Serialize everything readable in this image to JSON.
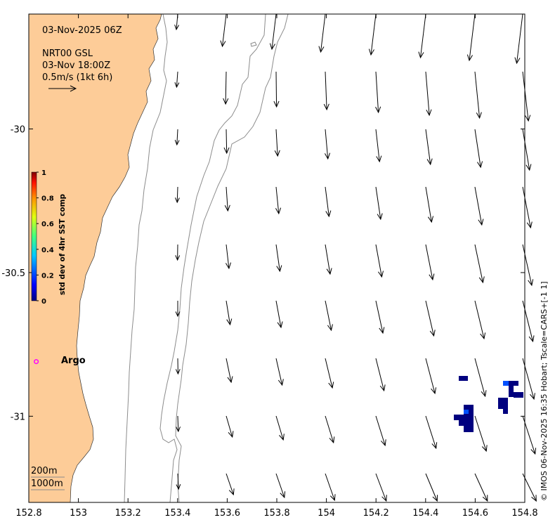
{
  "map": {
    "info_lines": [
      "03-Nov-2025 06Z",
      "NRT00 GSL",
      "03-Nov 18:00Z",
      "0.5m/s (1kt 6h)"
    ],
    "x_ticks": [
      "152.8",
      "153",
      "153.2",
      "153.4",
      "153.6",
      "153.8",
      "154",
      "154.2",
      "154.4",
      "154.6",
      "154.8"
    ],
    "y_ticks": [
      "-30",
      "-30.5",
      "-31"
    ],
    "lon_range": [
      152.8,
      154.8
    ],
    "lat_range": [
      -31.3,
      -29.6
    ],
    "colorbar": {
      "title": "std dev of 4hr SST comp",
      "ticks": [
        "0",
        "0.2",
        "0.4",
        "0.6",
        "0.8",
        "1"
      ],
      "range": [
        0,
        1
      ]
    },
    "argo_label": "Argo",
    "argo_position": {
      "lon": 152.83,
      "lat": -30.81
    },
    "depth_labels": [
      "200m",
      "1000m"
    ],
    "credit": "© IMOS 06-Nov-2025 16:35 Hobart; Tscale=CARS+[-1 1]",
    "colors": {
      "land": "#fdcc98",
      "argo_marker": "#ff00ff",
      "sst_low": "#00007f",
      "sst_mid": "#0050ff",
      "isobath": "#8c8c8c"
    }
  }
}
